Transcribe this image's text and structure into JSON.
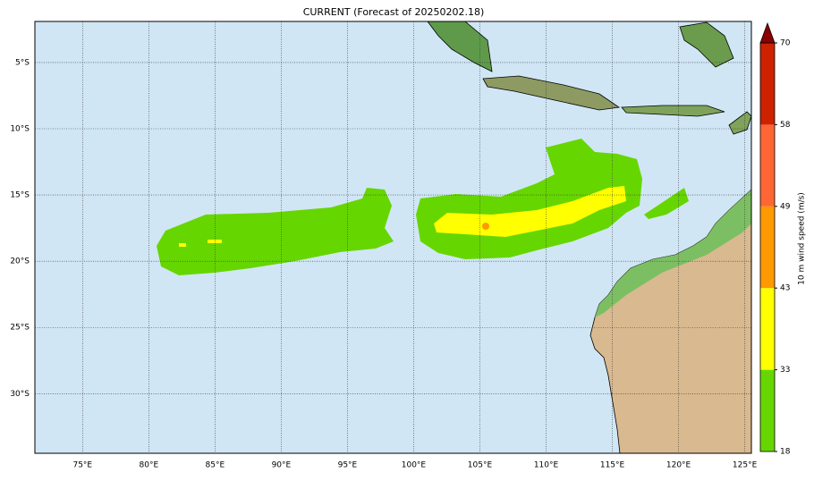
{
  "map": {
    "title": "CURRENT (Forecast of 20250202.18)",
    "xlim": [
      71.4,
      125.5
    ],
    "ylim": [
      -34.5,
      -1.9
    ],
    "xticks": [
      {
        "value": 75,
        "label": "75°E"
      },
      {
        "value": 80,
        "label": "80°E"
      },
      {
        "value": 85,
        "label": "85°E"
      },
      {
        "value": 90,
        "label": "90°E"
      },
      {
        "value": 95,
        "label": "95°E"
      },
      {
        "value": 100,
        "label": "100°E"
      },
      {
        "value": 105,
        "label": "105°E"
      },
      {
        "value": 110,
        "label": "110°E"
      },
      {
        "value": 115,
        "label": "115°E"
      },
      {
        "value": 120,
        "label": "120°E"
      },
      {
        "value": 125,
        "label": "125°E"
      }
    ],
    "yticks": [
      {
        "value": -5,
        "label": "5°S"
      },
      {
        "value": -10,
        "label": "10°S"
      },
      {
        "value": -15,
        "label": "15°S"
      },
      {
        "value": -20,
        "label": "20°S"
      },
      {
        "value": -25,
        "label": "25°S"
      },
      {
        "value": -30,
        "label": "30°S"
      }
    ],
    "grid": true,
    "colorbar": {
      "label": "10 m wind speed (m/s)",
      "ticks": [
        18,
        33,
        43,
        49,
        58,
        70
      ],
      "colors": [
        "#66d600",
        "#ffff00",
        "#ff9900",
        "#ff6633",
        "#cc2200"
      ],
      "extend_color": "#8b0000"
    }
  }
}
